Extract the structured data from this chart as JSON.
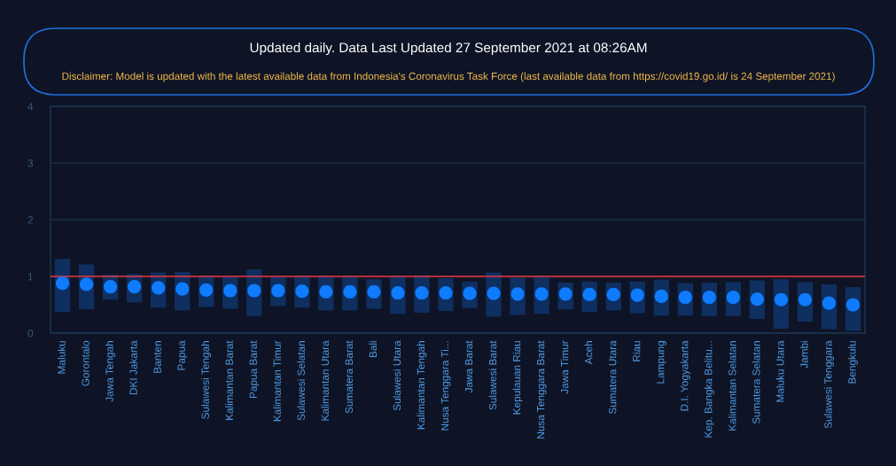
{
  "chart_data": {
    "type": "scatter",
    "title": "Updated daily. Data Last Updated 27 September 2021 at 08:26AM",
    "subtitle": "Disclaimer: Model is updated with the latest available data from Indonesia's Coronavirus Task Force (last available data from https://covid19.go.id/ is 24 September 2021)",
    "categories": [
      "Maluku",
      "Gorontalo",
      "Jawa Tengah",
      "DKI Jakarta",
      "Banten",
      "Papua",
      "Sulawesi Tengah",
      "Kalimantan Barat",
      "Papua Barat",
      "Kalimantan Timur",
      "Sulawesi Selatan",
      "Kalimantan Utara",
      "Sumatera Barat",
      "Bali",
      "Sulawesi Utara",
      "Kalimantan Tengah",
      "Nusa Tenggara Ti...",
      "Jawa Barat",
      "Sulawesi Barat",
      "Kepulauan Riau",
      "Nusa Tenggara Barat",
      "Jawa Timur",
      "Aceh",
      "Sumatera Utara",
      "Riau",
      "Lampung",
      "D.I. Yogyakarta",
      "Kep. Bangka Belitu...",
      "Kalimantan Selatan",
      "Sumatera Selatan",
      "Maluku Utara",
      "Jambi",
      "Sulawesi Tenggara",
      "Bengkulu"
    ],
    "values": [
      0.88,
      0.86,
      0.82,
      0.82,
      0.8,
      0.78,
      0.76,
      0.75,
      0.75,
      0.75,
      0.74,
      0.73,
      0.73,
      0.73,
      0.71,
      0.71,
      0.71,
      0.7,
      0.7,
      0.69,
      0.69,
      0.69,
      0.68,
      0.68,
      0.67,
      0.65,
      0.63,
      0.63,
      0.63,
      0.6,
      0.59,
      0.59,
      0.53,
      0.5
    ],
    "errors": [
      [
        0.37,
        1.31
      ],
      [
        0.42,
        1.21
      ],
      [
        0.59,
        1.03
      ],
      [
        0.54,
        1.04
      ],
      [
        0.45,
        1.07
      ],
      [
        0.4,
        1.08
      ],
      [
        0.46,
        1.0
      ],
      [
        0.43,
        0.99
      ],
      [
        0.3,
        1.12
      ],
      [
        0.48,
        0.99
      ],
      [
        0.45,
        1.0
      ],
      [
        0.4,
        1.0
      ],
      [
        0.4,
        1.0
      ],
      [
        0.43,
        0.95
      ],
      [
        0.34,
        1.0
      ],
      [
        0.36,
        1.02
      ],
      [
        0.39,
        0.97
      ],
      [
        0.44,
        0.91
      ],
      [
        0.29,
        1.07
      ],
      [
        0.32,
        0.98
      ],
      [
        0.34,
        1.0
      ],
      [
        0.42,
        0.89
      ],
      [
        0.37,
        0.91
      ],
      [
        0.4,
        0.89
      ],
      [
        0.35,
        0.91
      ],
      [
        0.31,
        0.94
      ],
      [
        0.31,
        0.88
      ],
      [
        0.3,
        0.89
      ],
      [
        0.3,
        0.9
      ],
      [
        0.25,
        0.93
      ],
      [
        0.08,
        0.95
      ],
      [
        0.2,
        0.9
      ],
      [
        0.07,
        0.86
      ],
      [
        0.04,
        0.81
      ]
    ],
    "color": "#0f7bff",
    "marker": "circle",
    "ylim": [
      0,
      4
    ],
    "yticks": [
      0,
      1,
      2,
      3,
      4
    ],
    "grid": "y",
    "ref_lines": [
      {
        "axis": "y",
        "value": 1,
        "color": "#e8343c"
      }
    ]
  }
}
